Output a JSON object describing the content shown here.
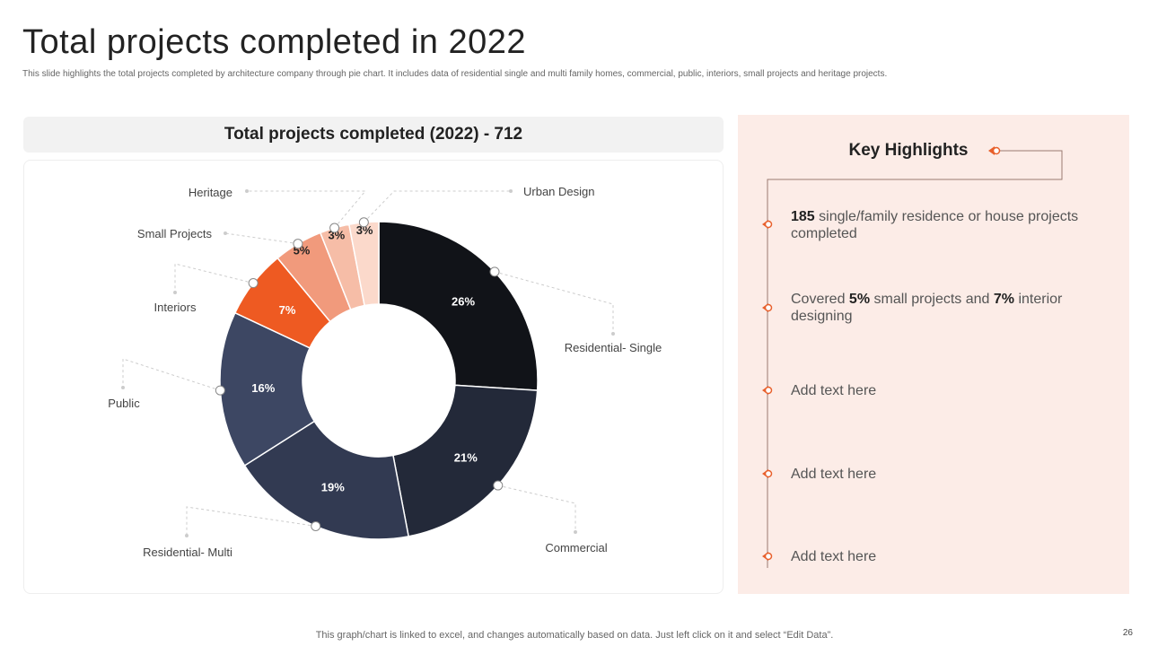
{
  "title": "Total projects completed in 2022",
  "subtitle": "This slide highlights the total projects completed by architecture company through pie chart. It includes data of residential single and multi  family homes, commercial, public, interiors, small projects and heritage projects.",
  "chart_header": "Total projects completed (2022) - 712",
  "chart_data": {
    "type": "pie",
    "donut": true,
    "title": "Total projects completed (2022) - 712",
    "categories": [
      "Residential- Single",
      "Commercial",
      "Residential- Multi",
      "Public",
      "Interiors",
      "Small Projects",
      "Heritage",
      "Urban Design"
    ],
    "values": [
      26,
      21,
      19,
      16,
      7,
      5,
      3,
      3
    ],
    "labels": [
      "26%",
      "21%",
      "19%",
      "16%",
      "7%",
      "5%",
      "3%",
      "3%"
    ],
    "colors": [
      "#111318",
      "#232939",
      "#323a52",
      "#3d4763",
      "#ee5a22",
      "#f19a7c",
      "#f6bda7",
      "#fbd9cb"
    ],
    "label_colors": [
      "#ffffff",
      "#ffffff",
      "#ffffff",
      "#ffffff",
      "#ffffff",
      "#222222",
      "#222222",
      "#222222"
    ]
  },
  "highlights": {
    "title": "Key Highlights",
    "items": [
      {
        "bold": "185",
        "text": " single/family residence or house projects completed"
      },
      {
        "pre": "Covered ",
        "bold1": "5%",
        "mid": " small projects and ",
        "bold2": "7%",
        "post": " interior designing"
      },
      {
        "text": "Add text here"
      },
      {
        "text": "Add text here"
      },
      {
        "text": "Add text here"
      }
    ],
    "accent": "#e8602c"
  },
  "footer": "This graph/chart is linked to excel,  and changes automatically based on data. Just left click on it and select “Edit Data”.",
  "page_number": "26"
}
